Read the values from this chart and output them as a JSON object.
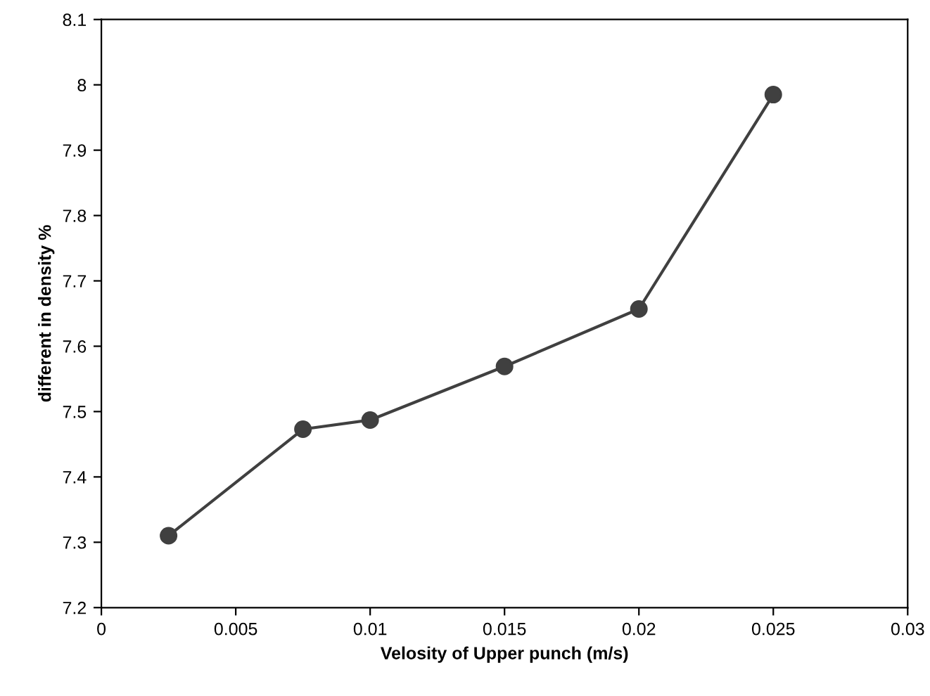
{
  "chart_data": {
    "type": "line",
    "xlabel": "Velosity of Upper punch (m/s)",
    "ylabel": "different in density %",
    "x": [
      0.0025,
      0.0075,
      0.01,
      0.015,
      0.02,
      0.025
    ],
    "series": [
      {
        "color": "#404040",
        "values": [
          7.31,
          7.473,
          7.487,
          7.569,
          7.657,
          7.985
        ]
      }
    ],
    "xlim": [
      0,
      0.03
    ],
    "xticks": [
      0,
      0.005,
      0.01,
      0.015,
      0.02,
      0.025,
      0.03
    ],
    "ylim": [
      7.2,
      8.1
    ],
    "yticks": [
      7.2,
      7.3,
      7.4,
      7.5,
      7.6,
      7.7,
      7.8,
      7.9,
      8,
      8.1
    ],
    "marker": "circle",
    "line_style": "solid",
    "grid": false
  }
}
